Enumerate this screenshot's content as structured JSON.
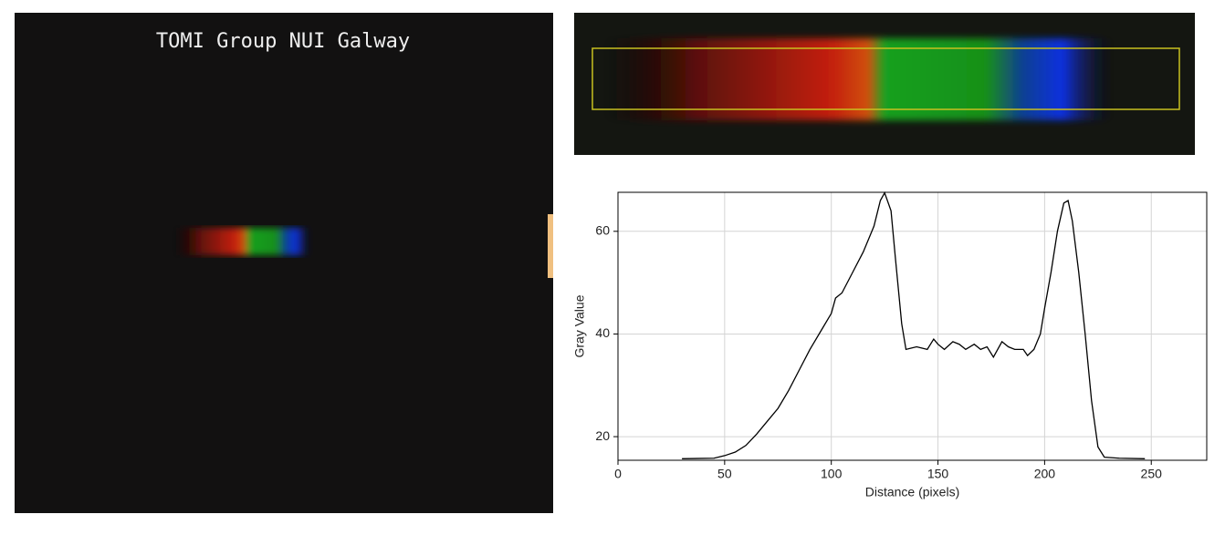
{
  "photo": {
    "caption": "TOMI Group NUI Galway"
  },
  "chart_data": {
    "type": "line",
    "xlabel": "Distance (pixels)",
    "ylabel": "Gray Value",
    "x": [
      30,
      45,
      50,
      55,
      60,
      65,
      70,
      75,
      80,
      85,
      90,
      95,
      100,
      102,
      105,
      110,
      115,
      120,
      123,
      125,
      128,
      130,
      133,
      135,
      140,
      145,
      148,
      150,
      153,
      157,
      160,
      163,
      167,
      170,
      173,
      176,
      180,
      183,
      186,
      190,
      192,
      195,
      198,
      200,
      203,
      206,
      209,
      211,
      213,
      216,
      219,
      222,
      225,
      228,
      235,
      247
    ],
    "series": [
      {
        "name": "Gray Value",
        "color": "#000000",
        "values": [
          15.7,
          15.8,
          16.3,
          17,
          18.3,
          20.5,
          23,
          25.5,
          29,
          33,
          37,
          40.5,
          44,
          47,
          48,
          52,
          56,
          61,
          66,
          67.5,
          64,
          55,
          42,
          37,
          37.5,
          37,
          39,
          38,
          37,
          38.5,
          38,
          37,
          38,
          37,
          37.5,
          35.5,
          38.5,
          37.5,
          37,
          37,
          35.8,
          37,
          40,
          45,
          52,
          60,
          65.5,
          66,
          62,
          52,
          40,
          27,
          18,
          16,
          15.8,
          15.7
        ]
      }
    ],
    "xlim": [
      0,
      276
    ],
    "ylim": [
      15.4,
      67.6
    ],
    "xticks": [
      0,
      50,
      100,
      150,
      200,
      250
    ],
    "yticks": [
      20,
      40,
      60
    ],
    "grid": true
  }
}
